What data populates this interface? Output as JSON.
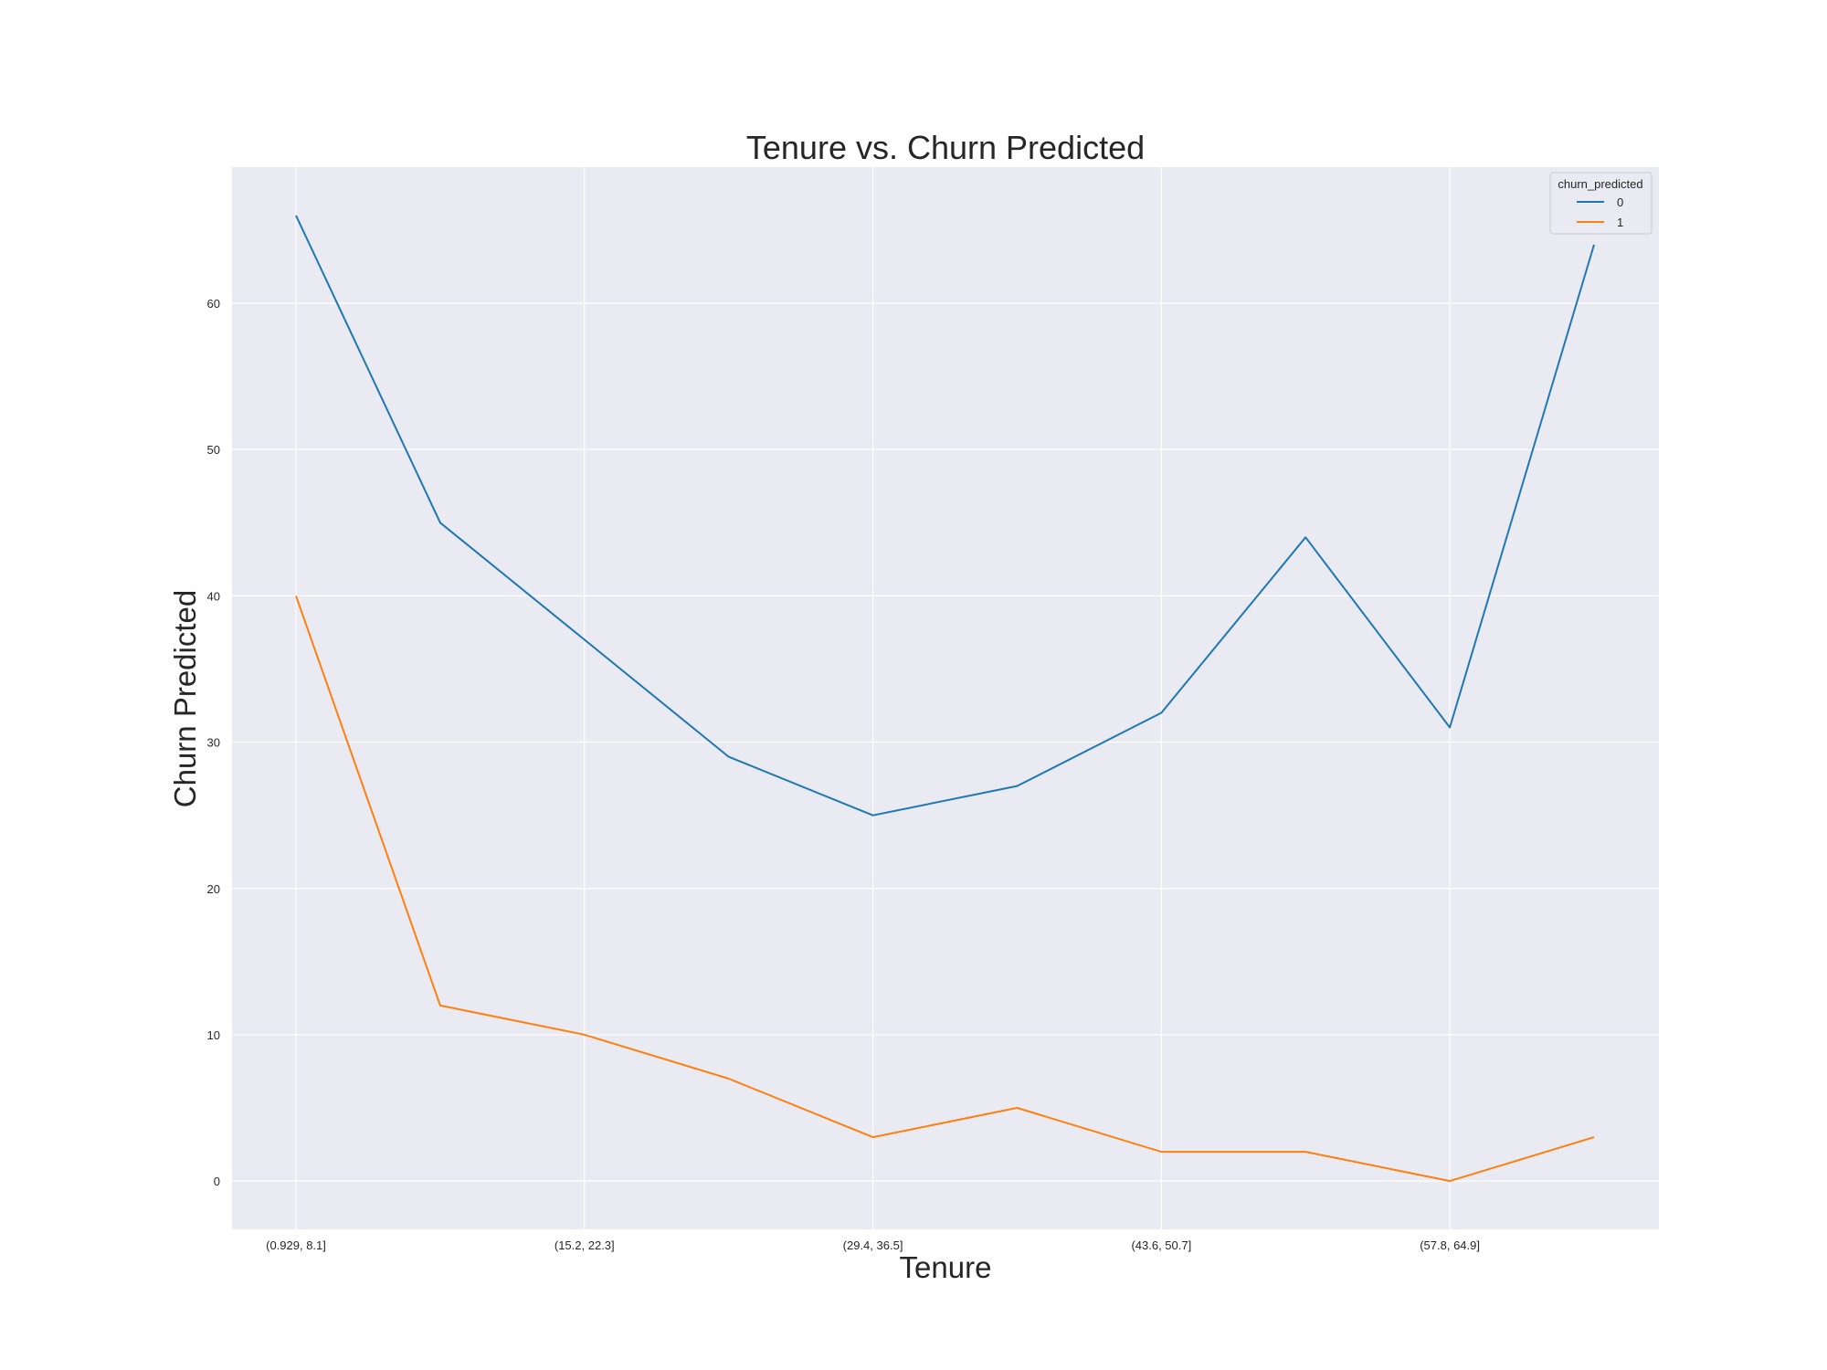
{
  "chart_data": {
    "type": "line",
    "title": "Tenure vs. Churn Predicted",
    "xlabel": "Tenure",
    "ylabel": "Churn Predicted",
    "x_tick_labels": [
      "(0.929, 8.1]",
      "(15.2, 22.3]",
      "(29.4, 36.5]",
      "(43.6, 50.7]",
      "(57.8, 64.9]"
    ],
    "x_tick_indices": [
      0,
      2,
      4,
      6,
      8
    ],
    "num_points": 10,
    "y_ticks": [
      0,
      10,
      20,
      30,
      40,
      50,
      60
    ],
    "ylim": [
      -3.3,
      69.3
    ],
    "grid": true,
    "legend": {
      "title": "churn_predicted",
      "position": "top-right"
    },
    "series": [
      {
        "name": "0",
        "color": "#1f77b4",
        "values": [
          66,
          45,
          37,
          29,
          25,
          27,
          32,
          44,
          31,
          64
        ]
      },
      {
        "name": "1",
        "color": "#ff7f0e",
        "values": [
          40,
          12,
          10,
          7,
          3,
          5,
          2,
          2,
          0,
          3
        ]
      }
    ]
  }
}
